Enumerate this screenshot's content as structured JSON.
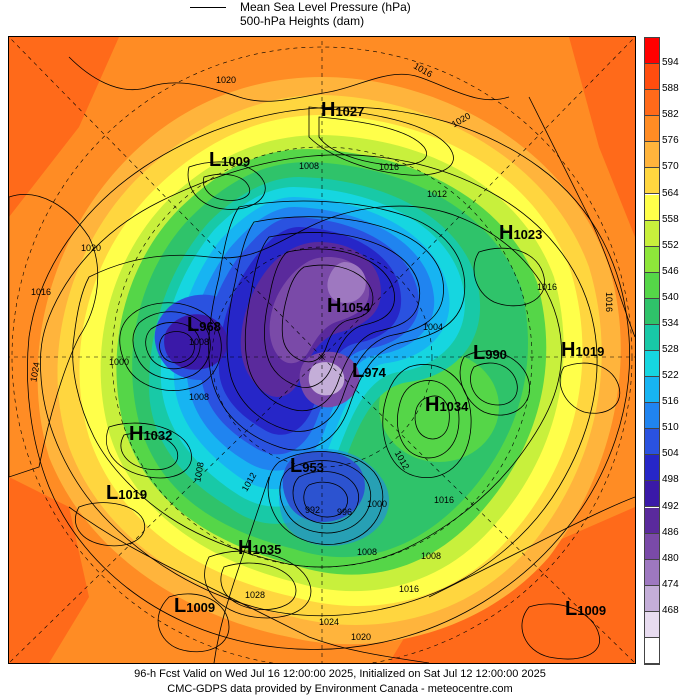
{
  "legend": {
    "mslp": "Mean Sea Level Pressure (hPa)",
    "heights": "500-hPa Heights (dam)"
  },
  "colorbar": {
    "labels": [
      "594",
      "588",
      "582",
      "576",
      "570",
      "564",
      "558",
      "552",
      "546",
      "540",
      "534",
      "528",
      "522",
      "516",
      "510",
      "504",
      "498",
      "492",
      "486",
      "480",
      "474",
      "468"
    ],
    "colors": [
      "#ff0000",
      "#ff4d0f",
      "#ff6a1a",
      "#ff8c24",
      "#ffb43c",
      "#ffd63f",
      "#ffff4a",
      "#c8f03c",
      "#8ee63a",
      "#55d648",
      "#2fc36a",
      "#18c9a7",
      "#16d6e0",
      "#17b4f2",
      "#2084f0",
      "#2a52e0",
      "#2626c8",
      "#3a19a8",
      "#5a2a9c",
      "#7a4aa8",
      "#9e78c0",
      "#c4aed8",
      "#e8dcf0",
      "#ffffff"
    ]
  },
  "pressure_centers": [
    {
      "name": "high-1027",
      "letter": "H",
      "value": "1027"
    },
    {
      "name": "low-1009-nw",
      "letter": "L",
      "value": "1009"
    },
    {
      "name": "high-1023",
      "letter": "H",
      "value": "1023"
    },
    {
      "name": "high-1019",
      "letter": "H",
      "value": "1019"
    },
    {
      "name": "low-990",
      "letter": "L",
      "value": "990"
    },
    {
      "name": "high-1034",
      "letter": "H",
      "value": "1034"
    },
    {
      "name": "low-974",
      "letter": "L",
      "value": "974"
    },
    {
      "name": "high-1054",
      "letter": "H",
      "value": "1054"
    },
    {
      "name": "low-968",
      "letter": "L",
      "value": "968"
    },
    {
      "name": "high-1032",
      "letter": "H",
      "value": "1032"
    },
    {
      "name": "low-1019",
      "letter": "L",
      "value": "1019"
    },
    {
      "name": "low-953",
      "letter": "L",
      "value": "953"
    },
    {
      "name": "high-1035",
      "letter": "H",
      "value": "1035"
    },
    {
      "name": "low-1009-sw",
      "letter": "L",
      "value": "1009"
    },
    {
      "name": "low-1009-se",
      "letter": "L",
      "value": "1009"
    }
  ],
  "contour_labels": [
    "1016",
    "1020",
    "1020",
    "1008",
    "1016",
    "1012",
    "1020",
    "1016",
    "1016",
    "1016",
    "1024",
    "1000",
    "1008",
    "1004",
    "1012",
    "1008",
    "1012",
    "1016",
    "1028",
    "1024",
    "1020",
    "1016",
    "1008",
    "1008",
    "992",
    "996",
    "1000",
    "1008"
  ],
  "footer": {
    "line1": "96-h Fcst Valid on Wed Jul 16 12:00:00 2025, Initialized on Sat Jul 12 12:00:00 2025",
    "line2": "CMC-GDPS data provided by Environment Canada - meteocentre.com"
  }
}
